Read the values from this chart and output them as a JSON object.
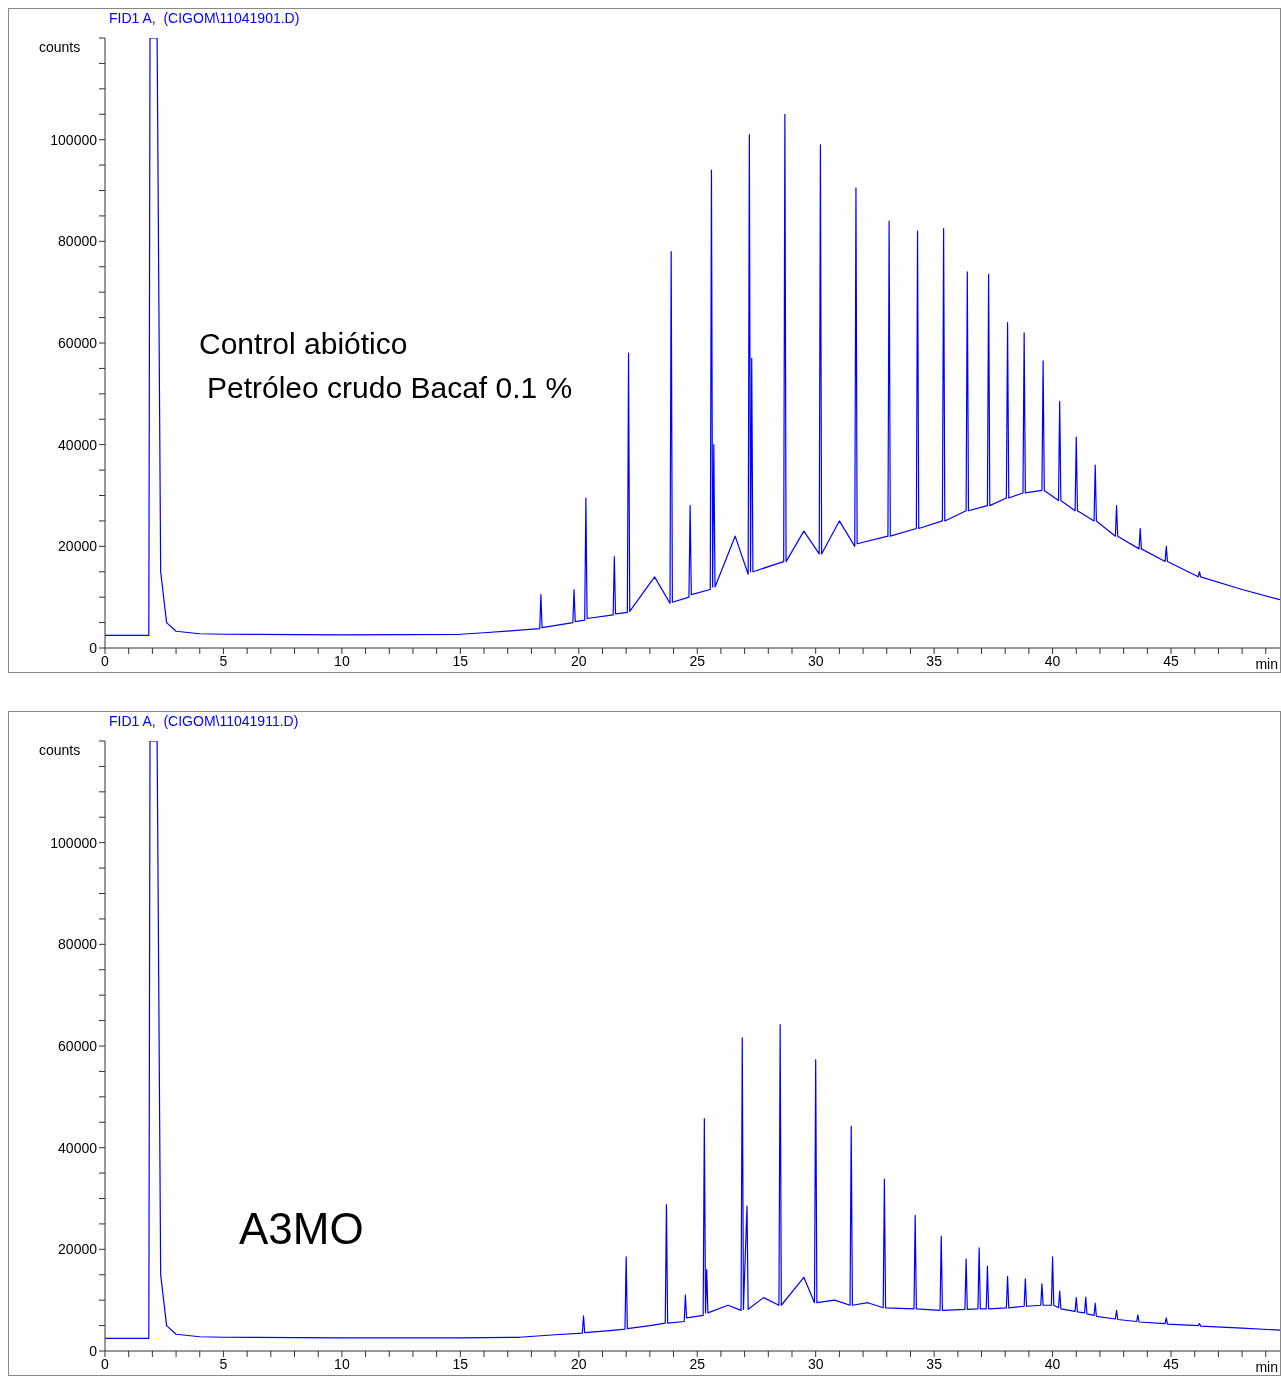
{
  "chart_data": [
    {
      "type": "line",
      "title": "FID1 A,  (CIGOM\\11041901.D)",
      "ylabel": "counts",
      "xlabel": "min",
      "annotations": [
        "Control abiótico",
        "Petróleo crudo Bacaf 0.1 %"
      ],
      "grid": false,
      "legend": false,
      "marker": "none",
      "line_style": "solid",
      "xlim": [
        0,
        49.6
      ],
      "ylim": [
        0,
        120000
      ],
      "xticks": [
        0,
        {
          "value": 1,
          "label": null
        },
        {
          "value": 2,
          "label": null
        },
        {
          "value": 3,
          "label": null
        },
        {
          "value": 4,
          "label": null
        },
        5,
        {
          "value": 6,
          "label": null
        },
        {
          "value": 7,
          "label": null
        },
        {
          "value": 8,
          "label": null
        },
        {
          "value": 9,
          "label": null
        },
        10,
        {
          "value": 11,
          "label": null
        },
        {
          "value": 12,
          "label": null
        },
        {
          "value": 13,
          "label": null
        },
        {
          "value": 14,
          "label": null
        },
        15,
        {
          "value": 16,
          "label": null
        },
        {
          "value": 17,
          "label": null
        },
        {
          "value": 18,
          "label": null
        },
        {
          "value": 19,
          "label": null
        },
        20,
        {
          "value": 21,
          "label": null
        },
        {
          "value": 22,
          "label": null
        },
        {
          "value": 23,
          "label": null
        },
        {
          "value": 24,
          "label": null
        },
        25,
        {
          "value": 26,
          "label": null
        },
        {
          "value": 27,
          "label": null
        },
        {
          "value": 28,
          "label": null
        },
        {
          "value": 29,
          "label": null
        },
        30,
        {
          "value": 31,
          "label": null
        },
        {
          "value": 32,
          "label": null
        },
        {
          "value": 33,
          "label": null
        },
        {
          "value": 34,
          "label": null
        },
        35,
        {
          "value": 36,
          "label": null
        },
        {
          "value": 37,
          "label": null
        },
        {
          "value": 38,
          "label": null
        },
        {
          "value": 39,
          "label": null
        },
        40,
        {
          "value": 41,
          "label": null
        },
        {
          "value": 42,
          "label": null
        },
        {
          "value": 43,
          "label": null
        },
        {
          "value": 44,
          "label": null
        },
        45,
        {
          "value": 46,
          "label": null
        },
        {
          "value": 47,
          "label": null
        },
        {
          "value": 48,
          "label": null
        },
        {
          "value": 49,
          "label": null
        }
      ],
      "yticks": [
        0,
        {
          "value": 5000,
          "label": null
        },
        {
          "value": 10000,
          "label": null
        },
        {
          "value": 15000,
          "label": null
        },
        20000,
        {
          "value": 25000,
          "label": null
        },
        {
          "value": 30000,
          "label": null
        },
        {
          "value": 35000,
          "label": null
        },
        40000,
        {
          "value": 45000,
          "label": null
        },
        {
          "value": 50000,
          "label": null
        },
        {
          "value": 55000,
          "label": null
        },
        60000,
        {
          "value": 65000,
          "label": null
        },
        {
          "value": 70000,
          "label": null
        },
        {
          "value": 75000,
          "label": null
        },
        80000,
        {
          "value": 85000,
          "label": null
        },
        {
          "value": 90000,
          "label": null
        },
        {
          "value": 95000,
          "label": null
        },
        100000,
        {
          "value": 105000,
          "label": null
        },
        {
          "value": 110000,
          "label": null
        },
        {
          "value": 115000,
          "label": null
        },
        {
          "value": 120000,
          "label": null
        }
      ],
      "x": [
        0,
        1.85,
        1.9,
        2.2,
        2.35,
        2.6,
        3.0,
        4,
        5,
        10,
        15,
        16,
        17.5,
        18.35,
        18.4,
        18.45,
        19.75,
        19.8,
        19.85,
        20.25,
        20.3,
        20.35,
        21.45,
        21.5,
        21.55,
        22.05,
        22.1,
        22.15,
        23.2,
        23.85,
        23.9,
        23.95,
        24.65,
        24.7,
        24.75,
        25.55,
        25.6,
        25.65,
        25.7,
        25.75,
        26.6,
        27.15,
        27.2,
        27.25,
        27.3,
        27.35,
        28.65,
        28.7,
        28.75,
        29.5,
        30.15,
        30.2,
        30.25,
        31.0,
        31.65,
        31.7,
        31.75,
        33.05,
        33.1,
        33.15,
        34.25,
        34.3,
        34.35,
        35.35,
        35.4,
        35.45,
        36.35,
        36.4,
        36.45,
        37.25,
        37.3,
        37.35,
        38.05,
        38.1,
        38.15,
        38.75,
        38.8,
        38.85,
        39.55,
        39.6,
        39.65,
        40.25,
        40.3,
        40.35,
        40.95,
        41.0,
        41.05,
        41.75,
        41.8,
        41.85,
        42.65,
        42.7,
        42.75,
        43.65,
        43.7,
        43.75,
        44.75,
        44.8,
        44.85,
        46.15,
        46.2,
        46.25,
        48,
        49.6
      ],
      "series": [
        {
          "color": "#0000ff",
          "values": [
            2500,
            2500,
            120000,
            120000,
            15000,
            5000,
            3300,
            2800,
            2700,
            2600,
            2700,
            3000,
            3500,
            3800,
            10500,
            4000,
            5000,
            11500,
            5200,
            5500,
            29500,
            5800,
            6500,
            18000,
            6700,
            7000,
            58000,
            7200,
            14000,
            8800,
            78000,
            9000,
            10000,
            28000,
            10500,
            11500,
            94000,
            12000,
            40000,
            12000,
            22000,
            14500,
            101000,
            15000,
            57000,
            15000,
            17000,
            105000,
            17000,
            23000,
            18500,
            99000,
            18500,
            25000,
            20000,
            90500,
            20500,
            22000,
            84000,
            22000,
            23500,
            82000,
            23500,
            25000,
            82500,
            25000,
            27000,
            74000,
            27000,
            28000,
            73500,
            28000,
            29500,
            64000,
            29500,
            30500,
            62000,
            30500,
            31000,
            56500,
            31000,
            29000,
            48500,
            29000,
            27000,
            41500,
            27000,
            25000,
            36000,
            25000,
            22000,
            28000,
            22000,
            19500,
            23500,
            19500,
            17000,
            20000,
            17000,
            14000,
            15000,
            14000,
            11500,
            9500
          ]
        }
      ]
    },
    {
      "type": "line",
      "title": "FID1 A,  (CIGOM\\11041911.D)",
      "ylabel": "counts",
      "xlabel": "min",
      "annotations": [
        "A3MO"
      ],
      "grid": false,
      "legend": false,
      "marker": "none",
      "line_style": "solid",
      "xlim": [
        0,
        49.6
      ],
      "ylim": [
        0,
        120000
      ],
      "xticks": [
        0,
        {
          "value": 1,
          "label": null
        },
        {
          "value": 2,
          "label": null
        },
        {
          "value": 3,
          "label": null
        },
        {
          "value": 4,
          "label": null
        },
        5,
        {
          "value": 6,
          "label": null
        },
        {
          "value": 7,
          "label": null
        },
        {
          "value": 8,
          "label": null
        },
        {
          "value": 9,
          "label": null
        },
        10,
        {
          "value": 11,
          "label": null
        },
        {
          "value": 12,
          "label": null
        },
        {
          "value": 13,
          "label": null
        },
        {
          "value": 14,
          "label": null
        },
        15,
        {
          "value": 16,
          "label": null
        },
        {
          "value": 17,
          "label": null
        },
        {
          "value": 18,
          "label": null
        },
        {
          "value": 19,
          "label": null
        },
        20,
        {
          "value": 21,
          "label": null
        },
        {
          "value": 22,
          "label": null
        },
        {
          "value": 23,
          "label": null
        },
        {
          "value": 24,
          "label": null
        },
        25,
        {
          "value": 26,
          "label": null
        },
        {
          "value": 27,
          "label": null
        },
        {
          "value": 28,
          "label": null
        },
        {
          "value": 29,
          "label": null
        },
        30,
        {
          "value": 31,
          "label": null
        },
        {
          "value": 32,
          "label": null
        },
        {
          "value": 33,
          "label": null
        },
        {
          "value": 34,
          "label": null
        },
        35,
        {
          "value": 36,
          "label": null
        },
        {
          "value": 37,
          "label": null
        },
        {
          "value": 38,
          "label": null
        },
        {
          "value": 39,
          "label": null
        },
        40,
        {
          "value": 41,
          "label": null
        },
        {
          "value": 42,
          "label": null
        },
        {
          "value": 43,
          "label": null
        },
        {
          "value": 44,
          "label": null
        },
        45,
        {
          "value": 46,
          "label": null
        },
        {
          "value": 47,
          "label": null
        },
        {
          "value": 48,
          "label": null
        },
        {
          "value": 49,
          "label": null
        }
      ],
      "yticks": [
        0,
        {
          "value": 5000,
          "label": null
        },
        {
          "value": 10000,
          "label": null
        },
        {
          "value": 15000,
          "label": null
        },
        20000,
        {
          "value": 25000,
          "label": null
        },
        {
          "value": 30000,
          "label": null
        },
        {
          "value": 35000,
          "label": null
        },
        40000,
        {
          "value": 45000,
          "label": null
        },
        {
          "value": 50000,
          "label": null
        },
        {
          "value": 55000,
          "label": null
        },
        60000,
        {
          "value": 65000,
          "label": null
        },
        {
          "value": 70000,
          "label": null
        },
        {
          "value": 75000,
          "label": null
        },
        80000,
        {
          "value": 85000,
          "label": null
        },
        {
          "value": 90000,
          "label": null
        },
        {
          "value": 95000,
          "label": null
        },
        100000,
        {
          "value": 105000,
          "label": null
        },
        {
          "value": 110000,
          "label": null
        },
        {
          "value": 115000,
          "label": null
        },
        {
          "value": 120000,
          "label": null
        }
      ],
      "x": [
        0,
        1.85,
        1.9,
        2.2,
        2.35,
        2.6,
        3.0,
        4,
        5,
        10,
        15,
        17.5,
        19,
        20.15,
        20.2,
        20.25,
        21.3,
        21.95,
        22.0,
        22.05,
        23.0,
        23.65,
        23.7,
        23.75,
        24.45,
        24.5,
        24.55,
        25.25,
        25.3,
        25.35,
        25.4,
        25.45,
        26.3,
        26.85,
        26.9,
        26.95,
        27.1,
        27.15,
        27.8,
        28.45,
        28.5,
        28.55,
        29.5,
        29.95,
        30.0,
        30.05,
        30.8,
        31.45,
        31.5,
        31.55,
        32.2,
        32.85,
        32.9,
        32.95,
        34.15,
        34.2,
        34.25,
        35.25,
        35.3,
        35.35,
        36.3,
        36.35,
        36.4,
        36.85,
        36.9,
        36.95,
        37.2,
        37.25,
        37.3,
        38.05,
        38.1,
        38.15,
        38.8,
        38.85,
        38.9,
        39.5,
        39.55,
        39.6,
        39.95,
        40.0,
        40.05,
        40.25,
        40.3,
        40.35,
        40.95,
        41.0,
        41.05,
        41.35,
        41.4,
        41.45,
        41.75,
        41.8,
        41.85,
        42.65,
        42.7,
        42.75,
        43.55,
        43.6,
        43.65,
        44.75,
        44.8,
        44.85,
        46.15,
        46.2,
        46.25,
        48,
        49.6
      ],
      "series": [
        {
          "color": "#0000ff",
          "values": [
            2500,
            2500,
            120000,
            120000,
            15000,
            5000,
            3300,
            2800,
            2700,
            2600,
            2600,
            2700,
            3200,
            3500,
            6900,
            3600,
            4000,
            4300,
            18500,
            4400,
            5000,
            5500,
            28800,
            5500,
            5800,
            11000,
            6500,
            7000,
            45700,
            7500,
            16000,
            7500,
            9000,
            8000,
            61600,
            8200,
            28500,
            8200,
            10500,
            9000,
            64200,
            9000,
            14500,
            9500,
            57300,
            9500,
            10000,
            9000,
            44200,
            9000,
            9500,
            8500,
            33800,
            8500,
            8300,
            26700,
            8300,
            8000,
            22600,
            8000,
            8200,
            18100,
            8200,
            8300,
            20300,
            8300,
            8300,
            16700,
            8300,
            8500,
            14700,
            8500,
            8800,
            14200,
            8800,
            9000,
            13200,
            9000,
            9000,
            18500,
            9000,
            8500,
            11800,
            8300,
            7800,
            10500,
            7700,
            7500,
            10600,
            7300,
            7000,
            9400,
            6800,
            6300,
            8000,
            6200,
            5800,
            7100,
            5700,
            5400,
            6500,
            5300,
            5000,
            5400,
            4900,
            4500,
            4100
          ]
        }
      ]
    }
  ]
}
